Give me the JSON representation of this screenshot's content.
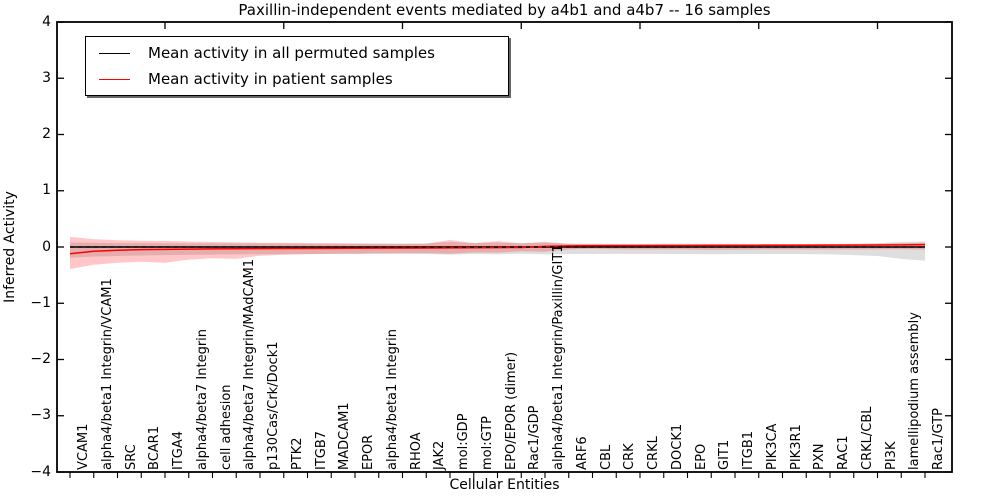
{
  "chart_data": {
    "type": "line",
    "title": "Paxillin-independent events mediated by a4b1 and a4b7 -- 16 samples",
    "xlabel": "Cellular Entities",
    "ylabel": "Inferred Activity",
    "ylim": [
      -4,
      4
    ],
    "yticks": [
      -4,
      -3,
      -2,
      -1,
      0,
      1,
      2,
      3,
      4
    ],
    "grid": false,
    "legend_position": "upper left",
    "reference_line": {
      "y": 0,
      "style": "dashed",
      "color": "#000000"
    },
    "categories": [
      "VCAM1",
      "alpha4/beta1 Integrin/VCAM1",
      "SRC",
      "BCAR1",
      "ITGA4",
      "alpha4/beta7 Integrin",
      "cell adhesion",
      "alpha4/beta7 Integrin/MAdCAM1",
      "p130Cas/Crk/Dock1",
      "PTK2",
      "ITGB7",
      "MADCAM1",
      "EPOR",
      "alpha4/beta1 Integrin",
      "RHOA",
      "JAK2",
      "mol:GDP",
      "mol:GTP",
      "EPO/EPOR (dimer)",
      "Rac1/GDP",
      "alpha4/beta1 Integrin/Paxillin/GIT1",
      "ARF6",
      "CBL",
      "CRK",
      "CRKL",
      "DOCK1",
      "EPO",
      "GIT1",
      "ITGB1",
      "PIK3CA",
      "PIK3R1",
      "PXN",
      "RAC1",
      "CRKL/CBL",
      "PI3K",
      "lamellipodium assembly",
      "Rac1/GTP"
    ],
    "series": [
      {
        "name": "Mean activity in all permuted samples",
        "color": "#000000",
        "band_color": "#000000",
        "band_opacity": 0.13,
        "values": [
          0,
          0,
          0,
          0,
          0,
          0,
          0,
          0,
          0,
          0,
          0,
          0,
          0,
          0,
          0,
          0,
          0,
          0,
          0,
          0,
          0,
          0,
          0,
          0,
          0,
          0,
          0,
          0,
          0,
          0,
          0,
          0,
          0,
          0,
          0,
          0,
          0
        ],
        "band_upper": [
          0.08,
          0.075,
          0.07,
          0.068,
          0.066,
          0.065,
          0.064,
          0.063,
          0.062,
          0.062,
          0.061,
          0.06,
          0.06,
          0.06,
          0.06,
          0.065,
          0.09,
          0.07,
          0.078,
          0.065,
          0.08,
          0.06,
          0.058,
          0.056,
          0.055,
          0.055,
          0.055,
          0.056,
          0.055,
          0.054,
          0.054,
          0.055,
          0.056,
          0.06,
          0.07,
          0.09,
          0.1
        ],
        "band_lower": [
          -0.19,
          -0.17,
          -0.16,
          -0.15,
          -0.145,
          -0.14,
          -0.135,
          -0.13,
          -0.128,
          -0.126,
          -0.125,
          -0.124,
          -0.123,
          -0.122,
          -0.121,
          -0.125,
          -0.135,
          -0.125,
          -0.13,
          -0.12,
          -0.13,
          -0.125,
          -0.124,
          -0.123,
          -0.123,
          -0.124,
          -0.125,
          -0.128,
          -0.126,
          -0.124,
          -0.125,
          -0.127,
          -0.13,
          -0.145,
          -0.16,
          -0.21,
          -0.245
        ]
      },
      {
        "name": "Mean activity in patient samples",
        "color": "#ff0000",
        "band_color": "#ff0000",
        "band_opacity": 0.22,
        "values": [
          -0.12,
          -0.075,
          -0.057,
          -0.047,
          -0.043,
          -0.037,
          -0.033,
          -0.031,
          -0.029,
          -0.027,
          -0.026,
          -0.025,
          -0.023,
          -0.021,
          -0.019,
          -0.017,
          -0.015,
          -0.013,
          -0.011,
          -0.008,
          0.012,
          0.02,
          0.022,
          0.024,
          0.025,
          0.026,
          0.027,
          0.028,
          0.029,
          0.03,
          0.031,
          0.032,
          0.033,
          0.034,
          0.036,
          0.038,
          0.042
        ],
        "band_upper": [
          0.18,
          0.14,
          0.12,
          0.112,
          0.11,
          0.095,
          0.088,
          0.085,
          0.077,
          0.073,
          0.068,
          0.066,
          0.062,
          0.058,
          0.056,
          0.06,
          0.125,
          0.07,
          0.105,
          0.067,
          0.092,
          0.056,
          0.052,
          0.05,
          0.049,
          0.048,
          0.048,
          0.05,
          0.049,
          0.048,
          0.048,
          0.05,
          0.051,
          0.052,
          0.055,
          0.065,
          0.075
        ],
        "band_lower": [
          -0.39,
          -0.315,
          -0.28,
          -0.262,
          -0.28,
          -0.225,
          -0.2,
          -0.21,
          -0.156,
          -0.138,
          -0.128,
          -0.121,
          -0.119,
          -0.113,
          -0.111,
          -0.108,
          -0.12,
          -0.095,
          -0.1,
          -0.076,
          -0.084,
          -0.042,
          -0.032,
          -0.04,
          -0.042,
          -0.043,
          -0.044,
          -0.05,
          -0.046,
          -0.044,
          -0.043,
          -0.044,
          -0.045,
          -0.044,
          -0.042,
          -0.04,
          -0.046
        ]
      }
    ]
  }
}
